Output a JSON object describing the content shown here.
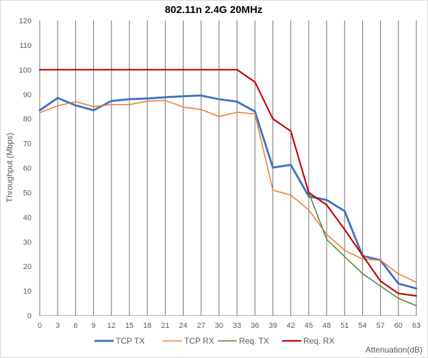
{
  "chart_data": {
    "type": "line",
    "title": "802.11n 2.4G 20MHz",
    "xlabel": "Attenuation(dB)",
    "ylabel": "Throughput (Mbps)",
    "x": [
      0,
      3,
      6,
      9,
      12,
      15,
      18,
      21,
      24,
      27,
      30,
      33,
      36,
      39,
      42,
      45,
      48,
      51,
      54,
      57,
      60,
      63
    ],
    "xlim": [
      0,
      63
    ],
    "ylim": [
      0,
      120
    ],
    "yticks": [
      0,
      10,
      20,
      30,
      40,
      50,
      60,
      70,
      80,
      90,
      100,
      110,
      120
    ],
    "grid": "vertical",
    "legend_position": "bottom",
    "series": [
      {
        "name": "TCP TX",
        "color": "#4472c4",
        "values": [
          83.5,
          88.5,
          85.5,
          83.5,
          87.3,
          88.0,
          88.3,
          88.8,
          89.2,
          89.5,
          88.0,
          87.0,
          83.0,
          60.2,
          61.3,
          48.5,
          47.0,
          42.5,
          24.3,
          22.5,
          13.0,
          11.0
        ]
      },
      {
        "name": "TCP RX",
        "color": "#ed7d31",
        "values": [
          82.5,
          85.3,
          87.0,
          85.0,
          85.8,
          85.8,
          87.2,
          87.5,
          84.8,
          83.8,
          81.0,
          82.7,
          82.0,
          51.0,
          49.0,
          43.0,
          33.0,
          26.5,
          23.0,
          22.5,
          17.0,
          13.5
        ]
      },
      {
        "name": "Req. TX",
        "color": "#548235",
        "values": [
          null,
          null,
          null,
          null,
          null,
          null,
          null,
          null,
          null,
          null,
          null,
          null,
          null,
          null,
          null,
          50.0,
          31.0,
          24.0,
          17.0,
          12.0,
          7.0,
          4.0
        ]
      },
      {
        "name": "Req. RX",
        "color": "#c00000",
        "values": [
          100,
          100,
          100,
          100,
          100,
          100,
          100,
          100,
          100,
          100,
          100,
          100,
          95.0,
          80.0,
          75.0,
          50.0,
          45.0,
          35.0,
          24.5,
          14.0,
          9.0,
          8.0
        ]
      }
    ]
  }
}
